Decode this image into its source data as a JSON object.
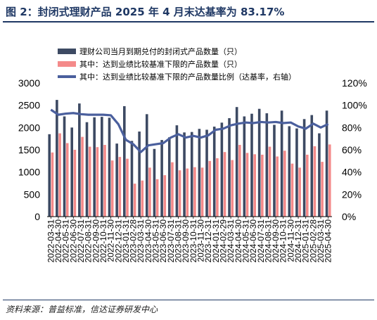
{
  "figure": {
    "title": "图 2：封闭式理财产品 2025 年 4 月末达基率为 83.17%",
    "source": "资料来源：普益标准，信达证券研发中心"
  },
  "colors": {
    "title": "#1f3864",
    "total_bar": "#3d4a63",
    "reached_bar": "#f48a8a",
    "ratio_line": "#4a5f9d"
  },
  "chart_data": {
    "type": "bar",
    "title": "",
    "xlabel": "",
    "ylabel": "",
    "ylim": [
      0,
      3000
    ],
    "y2lim": [
      0,
      1.2
    ],
    "yticks": [
      "0",
      "500",
      "1000",
      "1500",
      "2000",
      "2500",
      "3000"
    ],
    "y2ticks": [
      "0%",
      "20%",
      "40%",
      "60%",
      "80%",
      "100%",
      "120%"
    ],
    "legend_position": "top",
    "grid": false,
    "categories": [
      "2022-03-31",
      "2022-04-30",
      "2022-05-31",
      "2022-06-30",
      "2022-07-31",
      "2022-08-31",
      "2022-09-30",
      "2022-10-31",
      "2022-11-30",
      "2022-12-31",
      "2023-01-31",
      "2023-02-28",
      "2023-03-31",
      "2023-04-30",
      "2023-05-31",
      "2023-06-30",
      "2023-07-31",
      "2023-08-31",
      "2023-09-30",
      "2023-10-31",
      "2023-11-30",
      "2023-12-31",
      "2024-01-31",
      "2024-02-29",
      "2024-03-31",
      "2024-04-30",
      "2024-05-31",
      "2024-06-30",
      "2024-07-31",
      "2024-08-31",
      "2024-09-30",
      "2024-10-31",
      "2024-11-30",
      "2024-12-31",
      "2025-01-31",
      "2025-02-28",
      "2025-03-31",
      "2025-04-30"
    ],
    "xtick_labels": [
      "2022-03-31",
      "2022-04-30",
      "2022-05-31",
      "2022-06-30",
      "2022-07-31",
      "2022-08-31",
      "2022-09-30",
      "2022-10-31",
      "2022-11-30",
      "2022-12-31",
      "2023-01-31",
      "2023-02-28",
      "2023-03-31",
      "2023-04-30",
      "2023-05-31",
      "2023-06-30",
      "2023-07-31",
      "2023-08-31",
      "2023-09-30",
      "2023-10-31",
      "2023-11-30",
      "2023-12-31",
      "2024-01-31",
      "2024-02-29",
      "2024-03-31",
      "2024-04-30",
      "2024-05-31",
      "2024-06-30",
      "2024-07-31",
      "2024-08-31",
      "2024-09-30",
      "2024-10-31",
      "2024-11-30",
      "2024-12-31",
      "2025-01-31",
      "2025-02-28",
      "2025-03-31",
      "2025-04-30"
    ],
    "series": [
      {
        "name": "理财公司当月到期兑付的封闭式产品数量（只）",
        "kind": "bar",
        "axis": "left",
        "values": [
          1850,
          2620,
          2250,
          2000,
          2540,
          2120,
          2230,
          2240,
          2220,
          1640,
          2480,
          1700,
          1910,
          2300,
          1520,
          1720,
          1780,
          2050,
          1890,
          1900,
          1970,
          1950,
          2020,
          2110,
          2210,
          2460,
          2250,
          2310,
          2420,
          2320,
          2060,
          2380,
          2030,
          1980,
          2190,
          2280,
          1870,
          2380
        ]
      },
      {
        "name": "其中：达到业绩比较基准下限的产品数量（只）",
        "kind": "bar",
        "axis": "left",
        "values": [
          1440,
          1870,
          1650,
          1500,
          1790,
          1570,
          1560,
          1610,
          1260,
          1340,
          1300,
          740,
          810,
          1100,
          840,
          930,
          1220,
          1040,
          1080,
          1110,
          1100,
          1250,
          1310,
          1450,
          1270,
          1610,
          1430,
          1400,
          1390,
          1570,
          1350,
          1480,
          1190,
          1100,
          1390,
          1580,
          1230,
          1620
        ]
      },
      {
        "name": "其中：达到业绩比较基准下限的产品数量比例（达基率，右轴）",
        "kind": "line",
        "axis": "right",
        "values": [
          0.96,
          0.915,
          0.925,
          0.93,
          0.92,
          0.915,
          0.915,
          0.915,
          0.91,
          0.83,
          0.69,
          0.65,
          0.58,
          0.64,
          0.65,
          0.66,
          0.71,
          0.74,
          0.71,
          0.725,
          0.71,
          0.73,
          0.78,
          0.79,
          0.82,
          0.835,
          0.845,
          0.84,
          0.85,
          0.845,
          0.85,
          0.84,
          0.845,
          0.81,
          0.79,
          0.835,
          0.8,
          0.8317
        ]
      }
    ]
  }
}
